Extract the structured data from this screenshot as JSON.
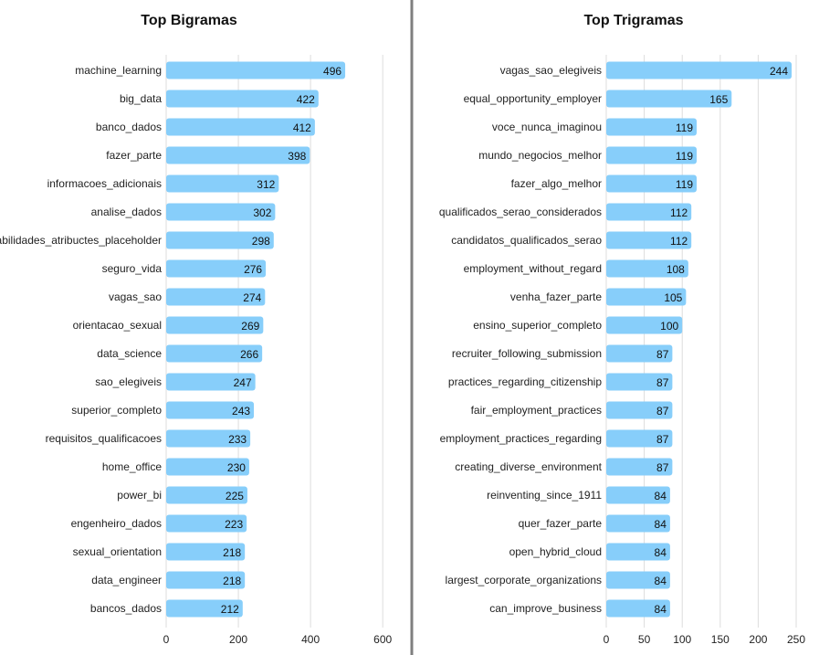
{
  "colors": {
    "bar": "#87cefa",
    "grid": "#dddddd",
    "divider": "#7f7f7f",
    "text": "#222222"
  },
  "chart_data": [
    {
      "type": "bar",
      "orientation": "horizontal",
      "title": "Top Bigramas",
      "xlim": [
        0,
        640
      ],
      "xticks": [
        0,
        200,
        400,
        600
      ],
      "grid": "vertical",
      "data_labels": true,
      "categories": [
        "machine_learning",
        "big_data",
        "banco_dados",
        "fazer_parte",
        "informacoes_adicionais",
        "analise_dados",
        "responsabilidades_atribuctes_placeholder",
        "seguro_vida",
        "vagas_sao",
        "orientacao_sexual",
        "data_science",
        "sao_elegiveis",
        "superior_completo",
        "requisitos_qualificacoes",
        "home_office",
        "power_bi",
        "engenheiro_dados",
        "sexual_orientation",
        "data_engineer",
        "bancos_dados"
      ],
      "values": [
        496,
        422,
        412,
        398,
        312,
        302,
        298,
        276,
        274,
        269,
        266,
        247,
        243,
        233,
        230,
        225,
        223,
        218,
        218,
        212
      ]
    },
    {
      "type": "bar",
      "orientation": "horizontal",
      "title": "Top Trigramas",
      "xlim": [
        0,
        262
      ],
      "xticks": [
        0,
        50,
        100,
        150,
        200,
        250
      ],
      "grid": "vertical",
      "data_labels": true,
      "categories": [
        "vagas_sao_elegiveis",
        "equal_opportunity_employer",
        "voce_nunca_imaginou",
        "mundo_negocios_melhor",
        "fazer_algo_melhor",
        "qualificados_serao_considerados",
        "candidatos_qualificados_serao",
        "employment_without_regard",
        "venha_fazer_parte",
        "ensino_superior_completo",
        "recruiter_following_submission",
        "practices_regarding_citizenship",
        "fair_employment_practices",
        "employment_practices_regarding",
        "creating_diverse_environment",
        "reinventing_since_1911",
        "quer_fazer_parte",
        "open_hybrid_cloud",
        "largest_corporate_organizations",
        "can_improve_business"
      ],
      "values": [
        244,
        165,
        119,
        119,
        119,
        112,
        112,
        108,
        105,
        100,
        87,
        87,
        87,
        87,
        87,
        84,
        84,
        84,
        84,
        84
      ]
    }
  ]
}
